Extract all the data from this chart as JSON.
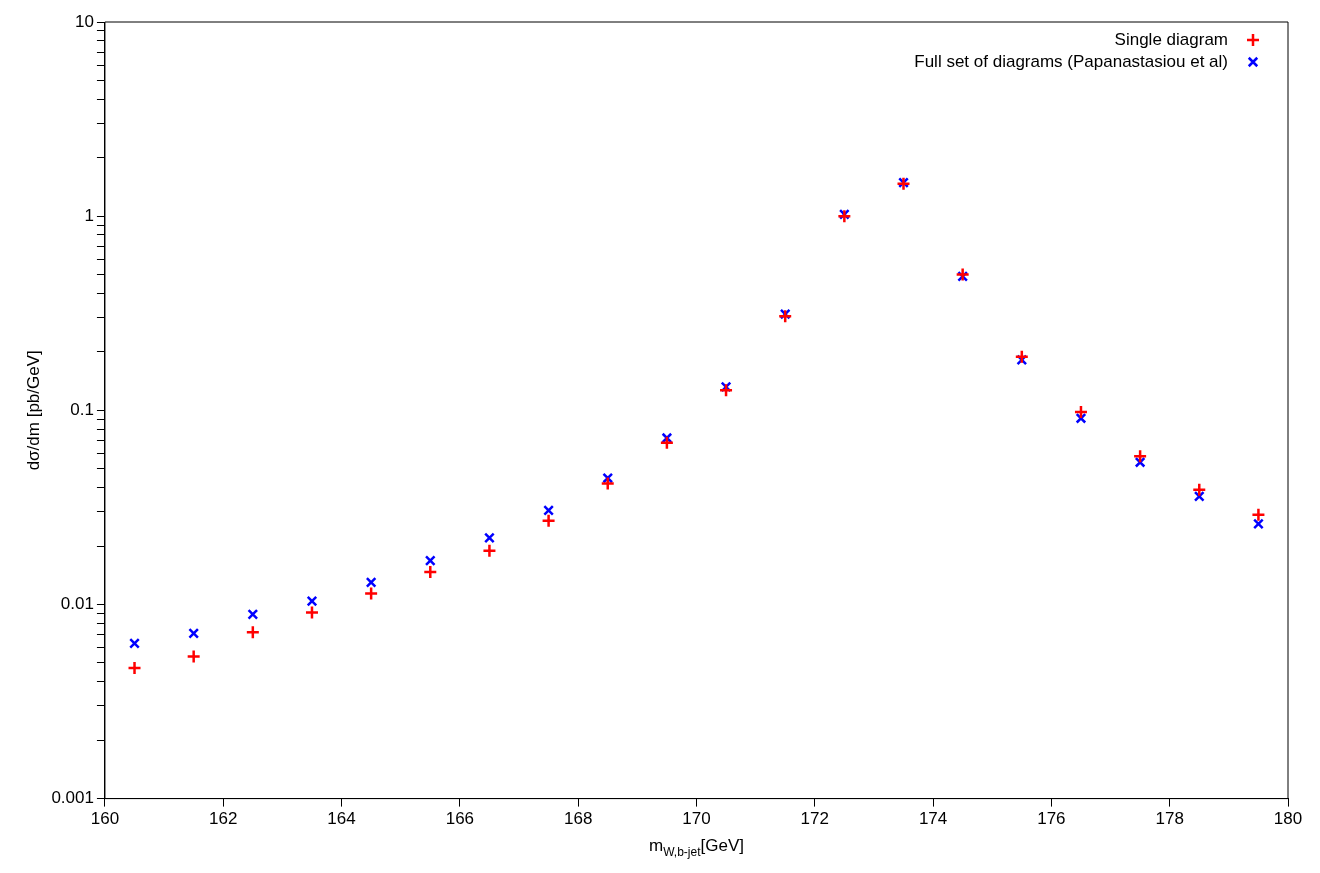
{
  "chart_data": {
    "type": "scatter",
    "xlabel": "m$_{W,b-jet}$[GeV]",
    "ylabel": "dσ/dm [pb/GeV]",
    "log": "y",
    "legend": "top right",
    "grid": false,
    "x": [
      160.5,
      161.5,
      162.5,
      163.5,
      164.5,
      165.5,
      166.5,
      167.5,
      168.5,
      169.5,
      170.5,
      171.5,
      172.5,
      173.5,
      174.5,
      175.5,
      176.5,
      177.5,
      178.5,
      179.5
    ],
    "xlim": [
      160,
      180
    ],
    "xticks": [
      160,
      162,
      164,
      166,
      168,
      170,
      172,
      174,
      176,
      178,
      180
    ],
    "ylim": [
      0.001,
      10
    ],
    "yticks": [
      {
        "value": 0.001,
        "label": "0.001"
      },
      {
        "value": 0.002,
        "label": null
      },
      {
        "value": 0.003,
        "label": null
      },
      {
        "value": 0.004,
        "label": null
      },
      {
        "value": 0.005,
        "label": null
      },
      {
        "value": 0.006,
        "label": null
      },
      {
        "value": 0.007,
        "label": null
      },
      {
        "value": 0.008,
        "label": null
      },
      {
        "value": 0.009,
        "label": null
      },
      {
        "value": 0.01,
        "label": "0.01"
      },
      {
        "value": 0.02,
        "label": null
      },
      {
        "value": 0.03,
        "label": null
      },
      {
        "value": 0.04,
        "label": null
      },
      {
        "value": 0.05,
        "label": null
      },
      {
        "value": 0.06,
        "label": null
      },
      {
        "value": 0.07,
        "label": null
      },
      {
        "value": 0.08,
        "label": null
      },
      {
        "value": 0.09,
        "label": null
      },
      {
        "value": 0.1,
        "label": "0.1"
      },
      {
        "value": 0.2,
        "label": null
      },
      {
        "value": 0.3,
        "label": null
      },
      {
        "value": 0.4,
        "label": null
      },
      {
        "value": 0.5,
        "label": null
      },
      {
        "value": 0.6,
        "label": null
      },
      {
        "value": 0.7,
        "label": null
      },
      {
        "value": 0.8,
        "label": null
      },
      {
        "value": 0.9,
        "label": null
      },
      {
        "value": 1,
        "label": "1"
      },
      {
        "value": 2,
        "label": null
      },
      {
        "value": 3,
        "label": null
      },
      {
        "value": 4,
        "label": null
      },
      {
        "value": 5,
        "label": null
      },
      {
        "value": 6,
        "label": null
      },
      {
        "value": 7,
        "label": null
      },
      {
        "value": 8,
        "label": null
      },
      {
        "value": 9,
        "label": null
      },
      {
        "value": 10,
        "label": "10"
      }
    ],
    "series": [
      {
        "name": "Single diagram",
        "color": "#ff0000",
        "marker": "plus",
        "values": [
          0.0047,
          0.0054,
          0.0072,
          0.0091,
          0.0114,
          0.0147,
          0.0189,
          0.027,
          0.042,
          0.068,
          0.127,
          0.305,
          1.0,
          1.47,
          0.5,
          0.189,
          0.098,
          0.058,
          0.039,
          0.029
        ]
      },
      {
        "name": "Full set of diagrams (Papanastasiou et al)",
        "color": "#0000ff",
        "marker": "cross",
        "values": [
          0.0063,
          0.0071,
          0.0089,
          0.0104,
          0.013,
          0.0168,
          0.022,
          0.0305,
          0.0448,
          0.072,
          0.132,
          0.313,
          1.02,
          1.49,
          0.49,
          0.182,
          0.091,
          0.054,
          0.036,
          0.026
        ]
      }
    ]
  }
}
